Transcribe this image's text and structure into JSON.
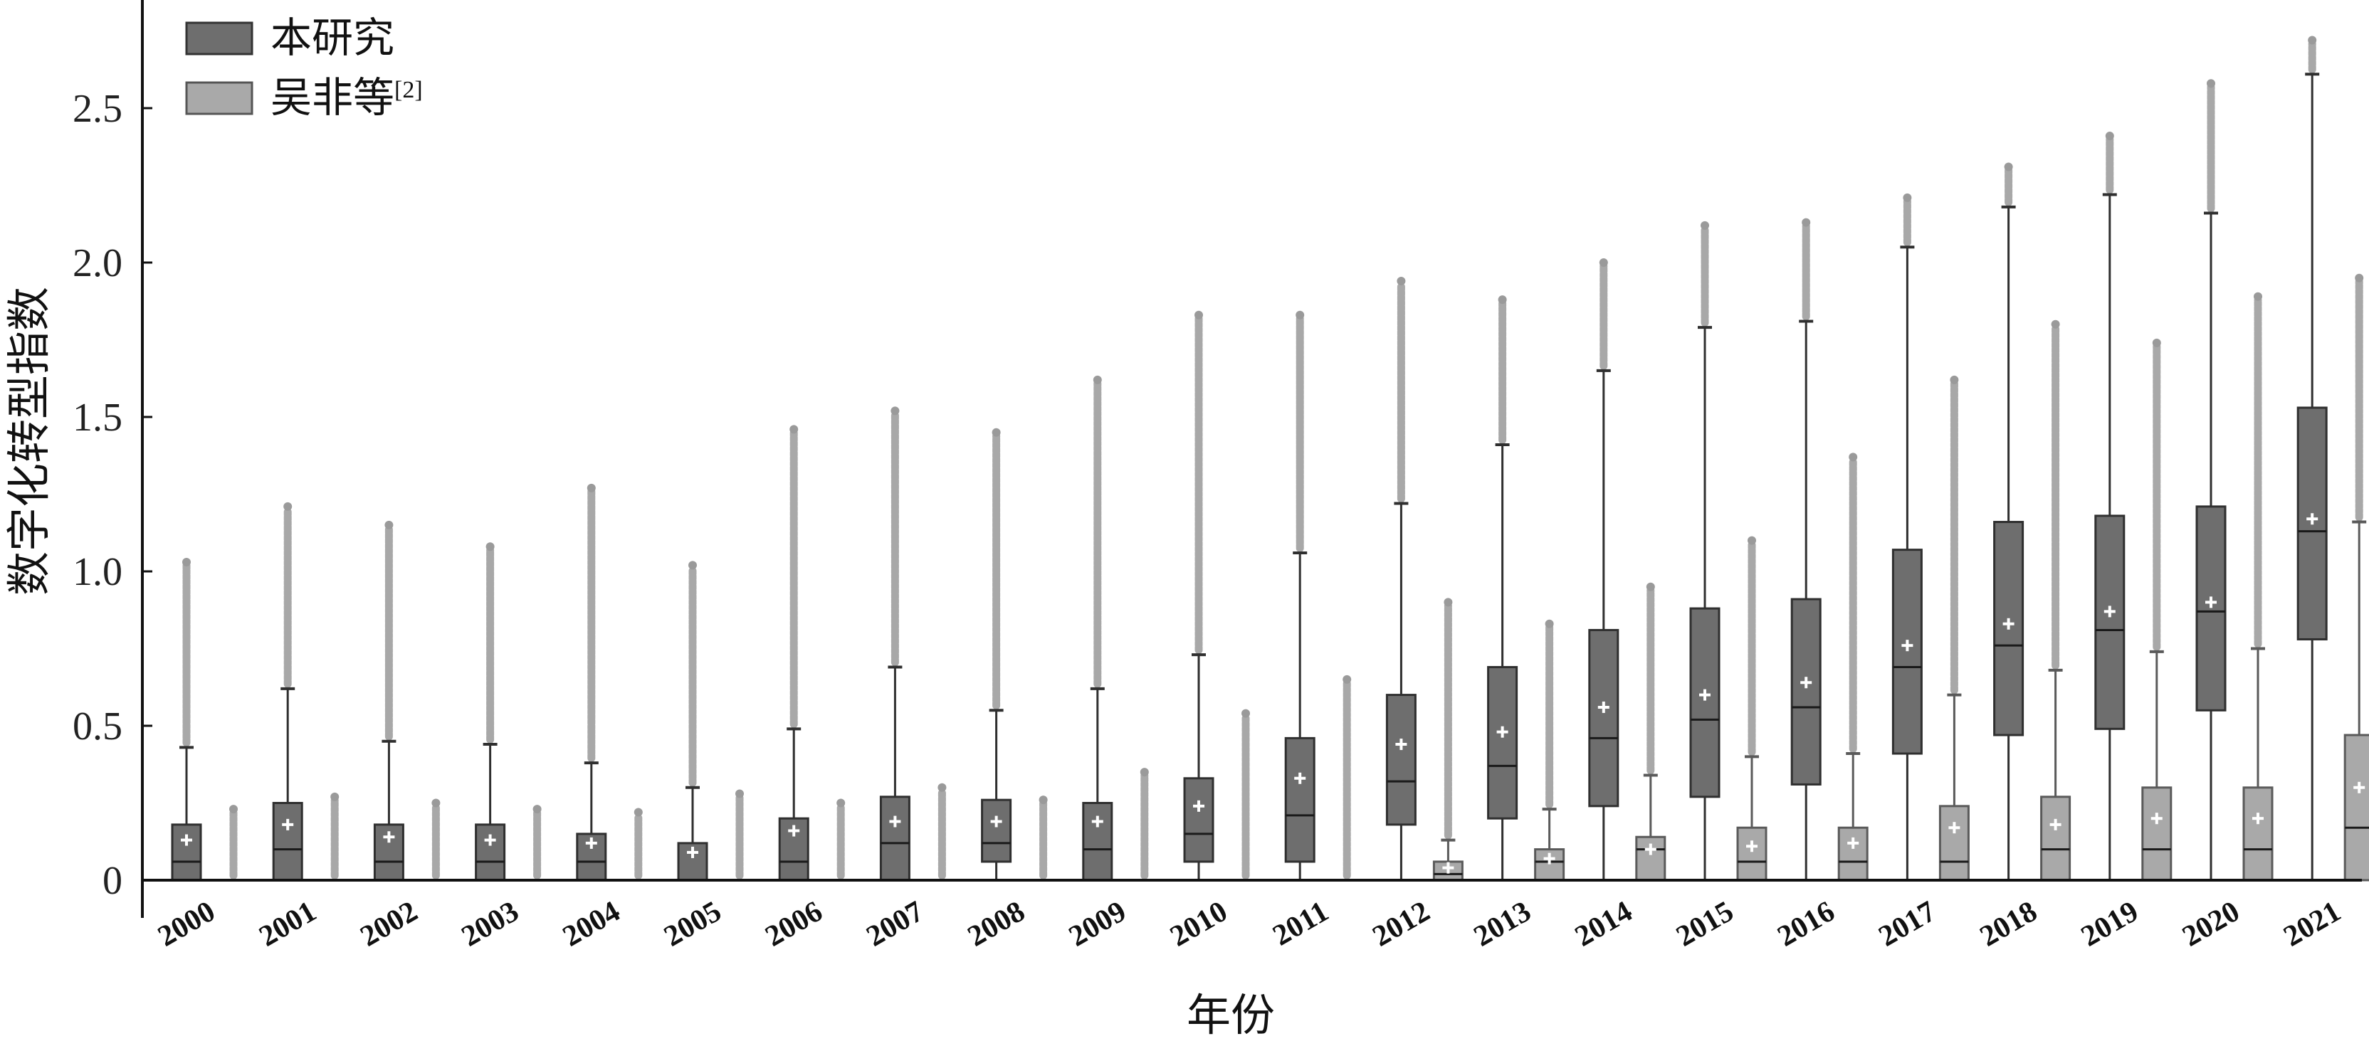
{
  "chart_data": {
    "type": "box",
    "xlabel": "年份",
    "ylabel": "数字化转型指数",
    "ylim": [
      0,
      2.8
    ],
    "yticks": [
      0,
      0.5,
      1.0,
      1.5,
      2.0,
      2.5
    ],
    "ytick_labels": [
      "0",
      "0.5",
      "1.0",
      "1.5",
      "2.0",
      "2.5"
    ],
    "categories": [
      "2000",
      "2001",
      "2002",
      "2003",
      "2004",
      "2005",
      "2006",
      "2007",
      "2008",
      "2009",
      "2010",
      "2011",
      "2012",
      "2013",
      "2014",
      "2015",
      "2016",
      "2017",
      "2018",
      "2019",
      "2020",
      "2021"
    ],
    "legend": {
      "placement": "top-left"
    },
    "series": [
      {
        "name": "本研究",
        "color": "#6e6e6e",
        "boxes": [
          {
            "q1": 0.0,
            "median": 0.06,
            "q3": 0.18,
            "whisker_low": 0,
            "whisker_high": 0.43,
            "mean": 0.13,
            "outlier_max": 1.03
          },
          {
            "q1": 0.0,
            "median": 0.1,
            "q3": 0.25,
            "whisker_low": 0,
            "whisker_high": 0.62,
            "mean": 0.18,
            "outlier_max": 1.21
          },
          {
            "q1": 0.0,
            "median": 0.06,
            "q3": 0.18,
            "whisker_low": 0,
            "whisker_high": 0.45,
            "mean": 0.14,
            "outlier_max": 1.15
          },
          {
            "q1": 0.0,
            "median": 0.06,
            "q3": 0.18,
            "whisker_low": 0,
            "whisker_high": 0.44,
            "mean": 0.13,
            "outlier_max": 1.08
          },
          {
            "q1": 0.0,
            "median": 0.06,
            "q3": 0.15,
            "whisker_low": 0,
            "whisker_high": 0.38,
            "mean": 0.12,
            "outlier_max": 1.27
          },
          {
            "q1": 0.0,
            "median": 0.0,
            "q3": 0.12,
            "whisker_low": 0,
            "whisker_high": 0.3,
            "mean": 0.09,
            "outlier_max": 1.02
          },
          {
            "q1": 0.0,
            "median": 0.06,
            "q3": 0.2,
            "whisker_low": 0,
            "whisker_high": 0.49,
            "mean": 0.16,
            "outlier_max": 1.46
          },
          {
            "q1": 0.0,
            "median": 0.12,
            "q3": 0.27,
            "whisker_low": 0,
            "whisker_high": 0.69,
            "mean": 0.19,
            "outlier_max": 1.52
          },
          {
            "q1": 0.06,
            "median": 0.12,
            "q3": 0.26,
            "whisker_low": 0,
            "whisker_high": 0.55,
            "mean": 0.19,
            "outlier_max": 1.45
          },
          {
            "q1": 0.0,
            "median": 0.1,
            "q3": 0.25,
            "whisker_low": 0,
            "whisker_high": 0.62,
            "mean": 0.19,
            "outlier_max": 1.62
          },
          {
            "q1": 0.06,
            "median": 0.15,
            "q3": 0.33,
            "whisker_low": 0,
            "whisker_high": 0.73,
            "mean": 0.24,
            "outlier_max": 1.83
          },
          {
            "q1": 0.06,
            "median": 0.21,
            "q3": 0.46,
            "whisker_low": 0,
            "whisker_high": 1.06,
            "mean": 0.33,
            "outlier_max": 1.83
          },
          {
            "q1": 0.18,
            "median": 0.32,
            "q3": 0.6,
            "whisker_low": 0,
            "whisker_high": 1.22,
            "mean": 0.44,
            "outlier_max": 1.94
          },
          {
            "q1": 0.2,
            "median": 0.37,
            "q3": 0.69,
            "whisker_low": 0,
            "whisker_high": 1.41,
            "mean": 0.48,
            "outlier_max": 1.88
          },
          {
            "q1": 0.24,
            "median": 0.46,
            "q3": 0.81,
            "whisker_low": 0,
            "whisker_high": 1.65,
            "mean": 0.56,
            "outlier_max": 2.0
          },
          {
            "q1": 0.27,
            "median": 0.52,
            "q3": 0.88,
            "whisker_low": 0,
            "whisker_high": 1.79,
            "mean": 0.6,
            "outlier_max": 2.12
          },
          {
            "q1": 0.31,
            "median": 0.56,
            "q3": 0.91,
            "whisker_low": 0,
            "whisker_high": 1.81,
            "mean": 0.64,
            "outlier_max": 2.13
          },
          {
            "q1": 0.41,
            "median": 0.69,
            "q3": 1.07,
            "whisker_low": 0,
            "whisker_high": 2.05,
            "mean": 0.76,
            "outlier_max": 2.21
          },
          {
            "q1": 0.47,
            "median": 0.76,
            "q3": 1.16,
            "whisker_low": 0,
            "whisker_high": 2.18,
            "mean": 0.83,
            "outlier_max": 2.31
          },
          {
            "q1": 0.49,
            "median": 0.81,
            "q3": 1.18,
            "whisker_low": 0,
            "whisker_high": 2.22,
            "mean": 0.87,
            "outlier_max": 2.41
          },
          {
            "q1": 0.55,
            "median": 0.87,
            "q3": 1.21,
            "whisker_low": 0,
            "whisker_high": 2.16,
            "mean": 0.9,
            "outlier_max": 2.58
          },
          {
            "q1": 0.78,
            "median": 1.13,
            "q3": 1.53,
            "whisker_low": 0,
            "whisker_high": 2.61,
            "mean": 1.17,
            "outlier_max": 2.72
          }
        ]
      },
      {
        "name": "吴非等",
        "name_sup": "[2]",
        "color": "#a9a9a9",
        "boxes": [
          {
            "q1": 0,
            "median": 0,
            "q3": 0,
            "whisker_low": 0,
            "whisker_high": 0,
            "mean": null,
            "outlier_max": 0.23
          },
          {
            "q1": 0,
            "median": 0,
            "q3": 0,
            "whisker_low": 0,
            "whisker_high": 0,
            "mean": null,
            "outlier_max": 0.27
          },
          {
            "q1": 0,
            "median": 0,
            "q3": 0,
            "whisker_low": 0,
            "whisker_high": 0,
            "mean": null,
            "outlier_max": 0.25
          },
          {
            "q1": 0,
            "median": 0,
            "q3": 0,
            "whisker_low": 0,
            "whisker_high": 0,
            "mean": null,
            "outlier_max": 0.23
          },
          {
            "q1": 0,
            "median": 0,
            "q3": 0,
            "whisker_low": 0,
            "whisker_high": 0,
            "mean": null,
            "outlier_max": 0.22
          },
          {
            "q1": 0,
            "median": 0,
            "q3": 0,
            "whisker_low": 0,
            "whisker_high": 0,
            "mean": null,
            "outlier_max": 0.28
          },
          {
            "q1": 0,
            "median": 0,
            "q3": 0,
            "whisker_low": 0,
            "whisker_high": 0,
            "mean": null,
            "outlier_max": 0.25
          },
          {
            "q1": 0,
            "median": 0,
            "q3": 0,
            "whisker_low": 0,
            "whisker_high": 0,
            "mean": null,
            "outlier_max": 0.3
          },
          {
            "q1": 0,
            "median": 0,
            "q3": 0,
            "whisker_low": 0,
            "whisker_high": 0,
            "mean": null,
            "outlier_max": 0.26
          },
          {
            "q1": 0,
            "median": 0,
            "q3": 0,
            "whisker_low": 0,
            "whisker_high": 0,
            "mean": null,
            "outlier_max": 0.35
          },
          {
            "q1": 0,
            "median": 0,
            "q3": 0,
            "whisker_low": 0,
            "whisker_high": 0,
            "mean": null,
            "outlier_max": 0.54
          },
          {
            "q1": 0,
            "median": 0,
            "q3": 0,
            "whisker_low": 0,
            "whisker_high": 0,
            "mean": null,
            "outlier_max": 0.65
          },
          {
            "q1": 0,
            "median": 0.02,
            "q3": 0.06,
            "whisker_low": 0,
            "whisker_high": 0.13,
            "mean": 0.04,
            "outlier_max": 0.9
          },
          {
            "q1": 0,
            "median": 0.06,
            "q3": 0.1,
            "whisker_low": 0,
            "whisker_high": 0.23,
            "mean": 0.07,
            "outlier_max": 0.83
          },
          {
            "q1": 0,
            "median": 0.1,
            "q3": 0.14,
            "whisker_low": 0,
            "whisker_high": 0.34,
            "mean": 0.1,
            "outlier_max": 0.95
          },
          {
            "q1": 0,
            "median": 0.06,
            "q3": 0.17,
            "whisker_low": 0,
            "whisker_high": 0.4,
            "mean": 0.11,
            "outlier_max": 1.1
          },
          {
            "q1": 0,
            "median": 0.06,
            "q3": 0.17,
            "whisker_low": 0,
            "whisker_high": 0.41,
            "mean": 0.12,
            "outlier_max": 1.37
          },
          {
            "q1": 0,
            "median": 0.06,
            "q3": 0.24,
            "whisker_low": 0,
            "whisker_high": 0.6,
            "mean": 0.17,
            "outlier_max": 1.62
          },
          {
            "q1": 0,
            "median": 0.1,
            "q3": 0.27,
            "whisker_low": 0,
            "whisker_high": 0.68,
            "mean": 0.18,
            "outlier_max": 1.8
          },
          {
            "q1": 0,
            "median": 0.1,
            "q3": 0.3,
            "whisker_low": 0,
            "whisker_high": 0.74,
            "mean": 0.2,
            "outlier_max": 1.74
          },
          {
            "q1": 0,
            "median": 0.1,
            "q3": 0.3,
            "whisker_low": 0,
            "whisker_high": 0.75,
            "mean": 0.2,
            "outlier_max": 1.89
          },
          {
            "q1": 0,
            "median": 0.17,
            "q3": 0.47,
            "whisker_low": 0,
            "whisker_high": 1.16,
            "mean": 0.3,
            "outlier_max": 1.95
          }
        ]
      }
    ]
  }
}
